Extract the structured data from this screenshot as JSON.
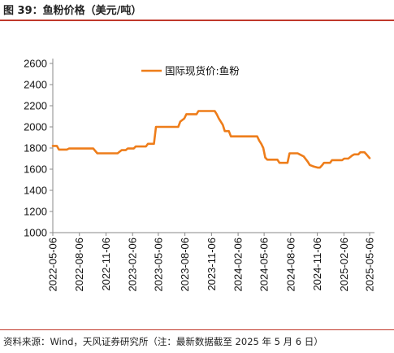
{
  "header": {
    "title": "图 39：鱼粉价格（美元/吨）"
  },
  "footer": {
    "source": "资料来源：Wind，天风证券研究所（注：最新数据截至 2025 年 5 月 6 日）"
  },
  "colors": {
    "accent_rule": "#c0392b",
    "series": "#ee7d1a",
    "axis": "#888888"
  },
  "chart_data": {
    "type": "line",
    "title": "",
    "xlabel": "",
    "ylabel": "",
    "ylim": [
      1000,
      2600
    ],
    "yticks": [
      1000,
      1200,
      1400,
      1600,
      1800,
      2000,
      2200,
      2400,
      2600
    ],
    "xlim": [
      "2022-05-06",
      "2025-05-06"
    ],
    "xticks": [
      "2022-05-06",
      "2022-08-06",
      "2022-11-06",
      "2023-02-06",
      "2023-05-06",
      "2023-08-06",
      "2023-11-06",
      "2024-02-06",
      "2024-05-06",
      "2024-08-06",
      "2024-11-06",
      "2025-02-06",
      "2025-05-06"
    ],
    "grid": false,
    "legend": "top-center",
    "series": [
      {
        "name": "国际现货价:鱼粉",
        "points": [
          [
            "2022-05-06",
            1820
          ],
          [
            "2022-05-20",
            1820
          ],
          [
            "2022-05-27",
            1785
          ],
          [
            "2022-06-24",
            1785
          ],
          [
            "2022-07-01",
            1795
          ],
          [
            "2022-09-23",
            1795
          ],
          [
            "2022-10-07",
            1750
          ],
          [
            "2022-12-16",
            1750
          ],
          [
            "2022-12-30",
            1780
          ],
          [
            "2023-01-13",
            1780
          ],
          [
            "2023-01-20",
            1795
          ],
          [
            "2023-02-10",
            1795
          ],
          [
            "2023-02-17",
            1815
          ],
          [
            "2023-03-24",
            1815
          ],
          [
            "2023-03-31",
            1840
          ],
          [
            "2023-04-21",
            1840
          ],
          [
            "2023-04-28",
            2000
          ],
          [
            "2023-07-14",
            2000
          ],
          [
            "2023-07-21",
            2050
          ],
          [
            "2023-08-04",
            2080
          ],
          [
            "2023-08-11",
            2120
          ],
          [
            "2023-09-15",
            2120
          ],
          [
            "2023-09-22",
            2150
          ],
          [
            "2023-11-17",
            2150
          ],
          [
            "2023-11-24",
            2120
          ],
          [
            "2023-12-01",
            2080
          ],
          [
            "2023-12-15",
            2020
          ],
          [
            "2023-12-22",
            1960
          ],
          [
            "2024-01-05",
            1960
          ],
          [
            "2024-01-12",
            1910
          ],
          [
            "2024-04-12",
            1910
          ],
          [
            "2024-04-19",
            1870
          ],
          [
            "2024-04-26",
            1840
          ],
          [
            "2024-05-03",
            1800
          ],
          [
            "2024-05-10",
            1710
          ],
          [
            "2024-05-17",
            1690
          ],
          [
            "2024-06-21",
            1690
          ],
          [
            "2024-06-28",
            1660
          ],
          [
            "2024-07-26",
            1660
          ],
          [
            "2024-08-02",
            1750
          ],
          [
            "2024-08-30",
            1750
          ],
          [
            "2024-09-06",
            1740
          ],
          [
            "2024-09-20",
            1720
          ],
          [
            "2024-10-04",
            1670
          ],
          [
            "2024-10-11",
            1640
          ],
          [
            "2024-10-25",
            1625
          ],
          [
            "2024-11-08",
            1615
          ],
          [
            "2024-11-15",
            1615
          ],
          [
            "2024-11-22",
            1635
          ],
          [
            "2024-11-29",
            1660
          ],
          [
            "2024-12-20",
            1660
          ],
          [
            "2024-12-27",
            1685
          ],
          [
            "2025-01-31",
            1685
          ],
          [
            "2025-02-07",
            1700
          ],
          [
            "2025-02-21",
            1700
          ],
          [
            "2025-03-07",
            1730
          ],
          [
            "2025-03-14",
            1740
          ],
          [
            "2025-03-28",
            1740
          ],
          [
            "2025-04-04",
            1760
          ],
          [
            "2025-04-18",
            1760
          ],
          [
            "2025-04-25",
            1740
          ],
          [
            "2025-05-06",
            1705
          ]
        ]
      }
    ]
  }
}
